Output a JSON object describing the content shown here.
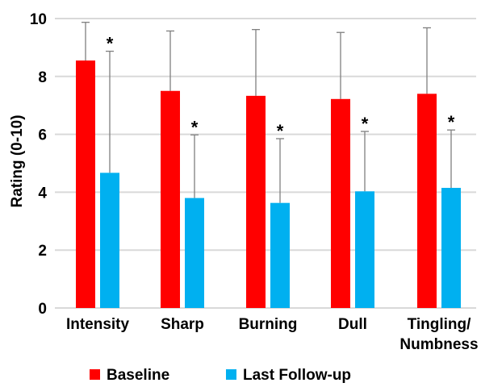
{
  "chart_data": {
    "type": "bar",
    "categories": [
      "Intensity",
      "Sharp",
      "Burning",
      "Dull",
      "Tingling/ Numbness"
    ],
    "category_lines": [
      [
        "Intensity"
      ],
      [
        "Sharp"
      ],
      [
        "Burning"
      ],
      [
        "Dull"
      ],
      [
        "Tingling/",
        "Numbness"
      ]
    ],
    "ylabel": "Rating (0-10)",
    "xlabel": "",
    "title": "",
    "ylim": [
      0,
      10
    ],
    "yticks": [
      0,
      2,
      4,
      6,
      8,
      10
    ],
    "grid": true,
    "legend_position": "bottom",
    "series": [
      {
        "name": "Baseline",
        "color": "#ff0000",
        "values": [
          8.55,
          7.5,
          7.33,
          7.22,
          7.4
        ],
        "error_upper": [
          9.87,
          9.57,
          9.62,
          9.52,
          9.68
        ]
      },
      {
        "name": "Last Follow-up",
        "color": "#00b0f0",
        "values": [
          4.67,
          3.8,
          3.63,
          4.03,
          4.15
        ],
        "error_upper": [
          8.87,
          5.98,
          5.85,
          6.1,
          6.15
        ],
        "significance": [
          "*",
          "*",
          "*",
          "*",
          "*"
        ]
      }
    ],
    "colors": {
      "grid": "#d9d9d9",
      "error_bar": "#7f7f7f",
      "axis": "#d9d9d9"
    }
  }
}
